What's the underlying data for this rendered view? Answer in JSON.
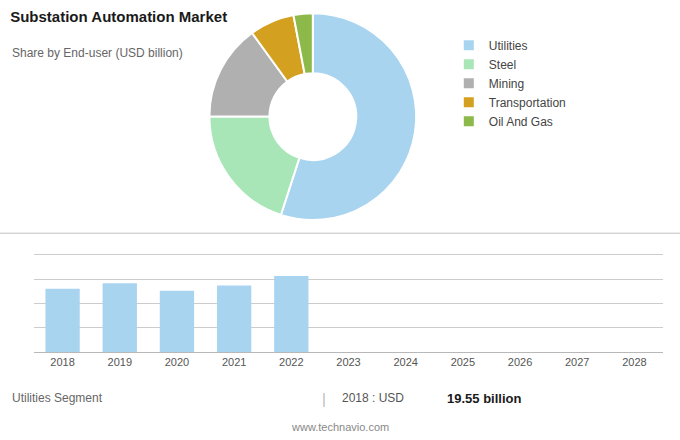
{
  "chart_data": [
    {
      "type": "pie",
      "title": "Substation Automation Market",
      "subtitle": "Share by End-user (USD billion)",
      "categories": [
        "Utilities",
        "Steel",
        "Mining",
        "Transportation",
        "Oil And Gas"
      ],
      "values": [
        55,
        20,
        15,
        7,
        3
      ],
      "colors": [
        "#a8d4f0",
        "#a8e6b8",
        "#b0b0b0",
        "#d4a020",
        "#8db84a"
      ],
      "legend": "right"
    },
    {
      "type": "bar",
      "categories": [
        "2018",
        "2019",
        "2020",
        "2021",
        "2022",
        "2023",
        "2024",
        "2025",
        "2026",
        "2027",
        "2028"
      ],
      "values": [
        0.6,
        0.65,
        0.58,
        0.63,
        0.72,
        null,
        null,
        null,
        null,
        null,
        null
      ],
      "color": "#a8d4f0",
      "ylim": [
        0,
        1
      ],
      "yticks": [
        0.23,
        0.46,
        0.69,
        0.92
      ],
      "grid": true,
      "tick_labels": "x",
      "annotations": [
        "Utilities Segment",
        "|",
        "2018 : USD ",
        "19.55 billion",
        "www.technavio.com"
      ]
    }
  ]
}
